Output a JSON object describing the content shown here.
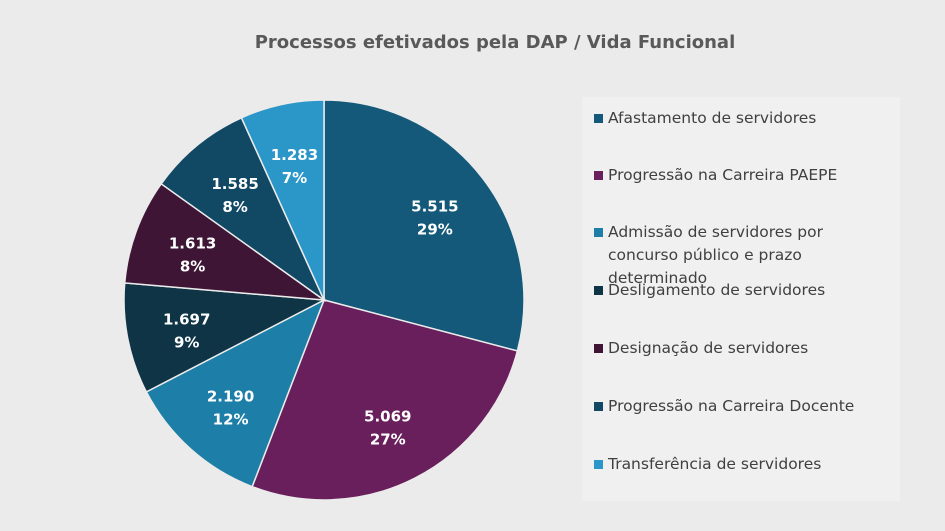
{
  "chart_data": {
    "type": "pie",
    "title": "Processos efetivados pela DAP / Vida Funcional",
    "legend_position": "right",
    "slices": [
      {
        "name": "Afastamento de servidores",
        "value": 5515,
        "value_label": "5.515",
        "percent_label": "29%",
        "color": "#14597a"
      },
      {
        "name": "Progressão na Carreira PAEPE",
        "value": 5069,
        "value_label": "5.069",
        "percent_label": "27%",
        "color": "#691f5c"
      },
      {
        "name": "Admissão de servidores por concurso público e prazo determinado",
        "value": 2190,
        "value_label": "2.190",
        "percent_label": "12%",
        "color": "#1d7ea7"
      },
      {
        "name": "Desligamento de servidores",
        "value": 1697,
        "value_label": "1.697",
        "percent_label": "9%",
        "color": "#0e3446"
      },
      {
        "name": "Designação de servidores",
        "value": 1613,
        "value_label": "1.613",
        "percent_label": "8%",
        "color": "#3f1536"
      },
      {
        "name": "Progressão na Carreira Docente",
        "value": 1585,
        "value_label": "1.585",
        "percent_label": "8%",
        "color": "#114863"
      },
      {
        "name": "Transferência de servidores",
        "value": 1283,
        "value_label": "1.283",
        "percent_label": "7%",
        "color": "#2b96c8"
      }
    ]
  }
}
